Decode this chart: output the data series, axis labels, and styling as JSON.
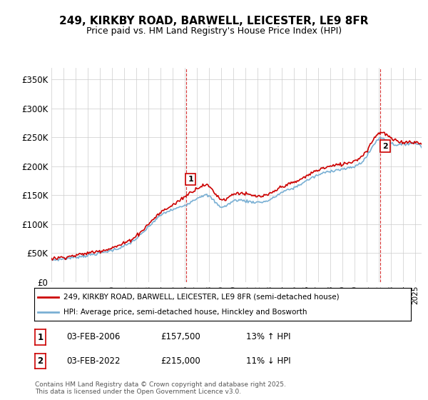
{
  "title": "249, KIRKBY ROAD, BARWELL, LEICESTER, LE9 8FR",
  "subtitle": "Price paid vs. HM Land Registry's House Price Index (HPI)",
  "ylabel_ticks": [
    "£0",
    "£50K",
    "£100K",
    "£150K",
    "£200K",
    "£250K",
    "£300K",
    "£350K"
  ],
  "ytick_values": [
    0,
    50000,
    100000,
    150000,
    200000,
    250000,
    300000,
    350000
  ],
  "ylim": [
    0,
    370000
  ],
  "xlim_start": 1995.0,
  "xlim_end": 2025.5,
  "property_color": "#cc0000",
  "hpi_color": "#7ab0d4",
  "sale1_x": 2006.08,
  "sale1_y": 157500,
  "sale1_label": "1",
  "sale2_x": 2022.08,
  "sale2_y": 215000,
  "sale2_label": "2",
  "legend1_text": "249, KIRKBY ROAD, BARWELL, LEICESTER, LE9 8FR (semi-detached house)",
  "legend2_text": "HPI: Average price, semi-detached house, Hinckley and Bosworth",
  "annotation1_date": "03-FEB-2006",
  "annotation1_price": "£157,500",
  "annotation1_hpi": "13% ↑ HPI",
  "annotation2_date": "03-FEB-2022",
  "annotation2_price": "£215,000",
  "annotation2_hpi": "11% ↓ HPI",
  "footer": "Contains HM Land Registry data © Crown copyright and database right 2025.\nThis data is licensed under the Open Government Licence v3.0.",
  "background_color": "#ffffff",
  "grid_color": "#cccccc",
  "hpi_controls": [
    [
      1995.0,
      38000
    ],
    [
      1996,
      40000
    ],
    [
      1997,
      43000
    ],
    [
      1998,
      46000
    ],
    [
      1999,
      50000
    ],
    [
      2000,
      55000
    ],
    [
      2001,
      62000
    ],
    [
      2002,
      75000
    ],
    [
      2003,
      95000
    ],
    [
      2004,
      115000
    ],
    [
      2005,
      125000
    ],
    [
      2006,
      133000
    ],
    [
      2007,
      145000
    ],
    [
      2008,
      148000
    ],
    [
      2009,
      130000
    ],
    [
      2010,
      140000
    ],
    [
      2011,
      140000
    ],
    [
      2012,
      138000
    ],
    [
      2013,
      142000
    ],
    [
      2014,
      155000
    ],
    [
      2015,
      163000
    ],
    [
      2016,
      175000
    ],
    [
      2017,
      185000
    ],
    [
      2018,
      192000
    ],
    [
      2019,
      195000
    ],
    [
      2020,
      200000
    ],
    [
      2021,
      218000
    ],
    [
      2022,
      248000
    ],
    [
      2023,
      240000
    ],
    [
      2024,
      238000
    ],
    [
      2025.5,
      235000
    ]
  ],
  "prop_controls": [
    [
      1995.0,
      40000
    ],
    [
      1996,
      43000
    ],
    [
      1997,
      46000
    ],
    [
      1998,
      50000
    ],
    [
      1999,
      54000
    ],
    [
      2000,
      59000
    ],
    [
      2001,
      67000
    ],
    [
      2002,
      80000
    ],
    [
      2003,
      100000
    ],
    [
      2004,
      120000
    ],
    [
      2005,
      133000
    ],
    [
      2006,
      148000
    ],
    [
      2007,
      162000
    ],
    [
      2008,
      165000
    ],
    [
      2009,
      143000
    ],
    [
      2010,
      152000
    ],
    [
      2011,
      152000
    ],
    [
      2012,
      148000
    ],
    [
      2013,
      152000
    ],
    [
      2014,
      165000
    ],
    [
      2015,
      172000
    ],
    [
      2016,
      183000
    ],
    [
      2017,
      194000
    ],
    [
      2018,
      200000
    ],
    [
      2019,
      204000
    ],
    [
      2020,
      210000
    ],
    [
      2021,
      228000
    ],
    [
      2022,
      258000
    ],
    [
      2023,
      248000
    ],
    [
      2024,
      242000
    ],
    [
      2025.5,
      238000
    ]
  ]
}
